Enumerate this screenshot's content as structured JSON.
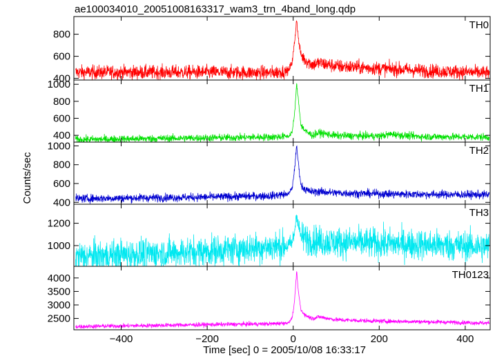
{
  "title": "ae100034010_20051008163317_wam3_trn_4band_long.qdp",
  "xlabel": "Time [sec] 0 = 2005/10/08 16:33:17",
  "ylabel": "Counts/sec",
  "chart_data": {
    "type": "line",
    "title": "ae100034010_20051008163317_wam3_trn_4band_long.qdp",
    "xlabel": "Time [sec] 0 = 2005/10/08 16:33:17",
    "ylabel": "Counts/sec",
    "xlim": [
      -510,
      458
    ],
    "xticks": [
      -400,
      -200,
      0,
      200,
      400
    ],
    "grid": false,
    "legend": "none",
    "panels": [
      {
        "name": "TH0",
        "color": "#ff0000",
        "ylim": [
          385,
          960
        ],
        "yticks": [
          400,
          600,
          800
        ],
        "baseline": 455,
        "noise": 32,
        "x": [
          -500,
          -200,
          -50,
          -10,
          -2,
          3,
          8,
          12,
          18,
          30,
          45,
          60,
          100,
          200,
          300,
          450
        ],
        "peak": [
          455,
          455,
          450,
          470,
          560,
          720,
          940,
          760,
          610,
          560,
          525,
          540,
          510,
          490,
          470,
          450
        ]
      },
      {
        "name": "TH1",
        "color": "#00e000",
        "ylim": [
          320,
          1050
        ],
        "yticks": [
          400,
          600,
          800,
          1000
        ],
        "baseline": 365,
        "noise": 22,
        "x": [
          -500,
          -200,
          -50,
          -10,
          -2,
          3,
          8,
          12,
          18,
          30,
          45,
          60,
          100,
          200,
          230,
          260,
          300,
          450
        ],
        "peak": [
          350,
          370,
          380,
          390,
          450,
          640,
          1000,
          820,
          520,
          440,
          400,
          430,
          395,
          390,
          415,
          395,
          385,
          380
        ]
      },
      {
        "name": "TH2",
        "color": "#0000d0",
        "ylim": [
          380,
          1040
        ],
        "yticks": [
          400,
          600,
          800,
          1000
        ],
        "baseline": 455,
        "noise": 22,
        "x": [
          -500,
          -200,
          -50,
          -10,
          -2,
          3,
          8,
          12,
          18,
          30,
          45,
          60,
          100,
          200,
          300,
          450
        ],
        "peak": [
          440,
          455,
          470,
          490,
          560,
          750,
          1000,
          820,
          580,
          530,
          510,
          515,
          500,
          490,
          485,
          480
        ]
      },
      {
        "name": "TH3",
        "color": "#00e8f0",
        "ylim": [
          815,
          1370
        ],
        "yticks": [
          1000,
          1200
        ],
        "baseline": 980,
        "noise": 70,
        "x": [
          -500,
          -200,
          -50,
          -10,
          -2,
          3,
          8,
          12,
          18,
          30,
          60,
          100,
          200,
          300,
          450
        ],
        "peak": [
          900,
          950,
          990,
          1000,
          1030,
          1120,
          1300,
          1180,
          1080,
          1060,
          1040,
          1030,
          1020,
          1010,
          990
        ]
      },
      {
        "name": "TH0123",
        "color": "#ff00ff",
        "ylim": [
          2080,
          4430
        ],
        "yticks": [
          2500,
          3000,
          3500,
          4000
        ],
        "baseline": 2270,
        "noise": 40,
        "x": [
          -500,
          -200,
          -50,
          -10,
          -2,
          3,
          8,
          12,
          18,
          30,
          45,
          60,
          100,
          200,
          300,
          450
        ],
        "peak": [
          2200,
          2270,
          2300,
          2340,
          2550,
          3100,
          4250,
          3500,
          2800,
          2600,
          2500,
          2560,
          2450,
          2400,
          2380,
          2330
        ]
      }
    ]
  }
}
